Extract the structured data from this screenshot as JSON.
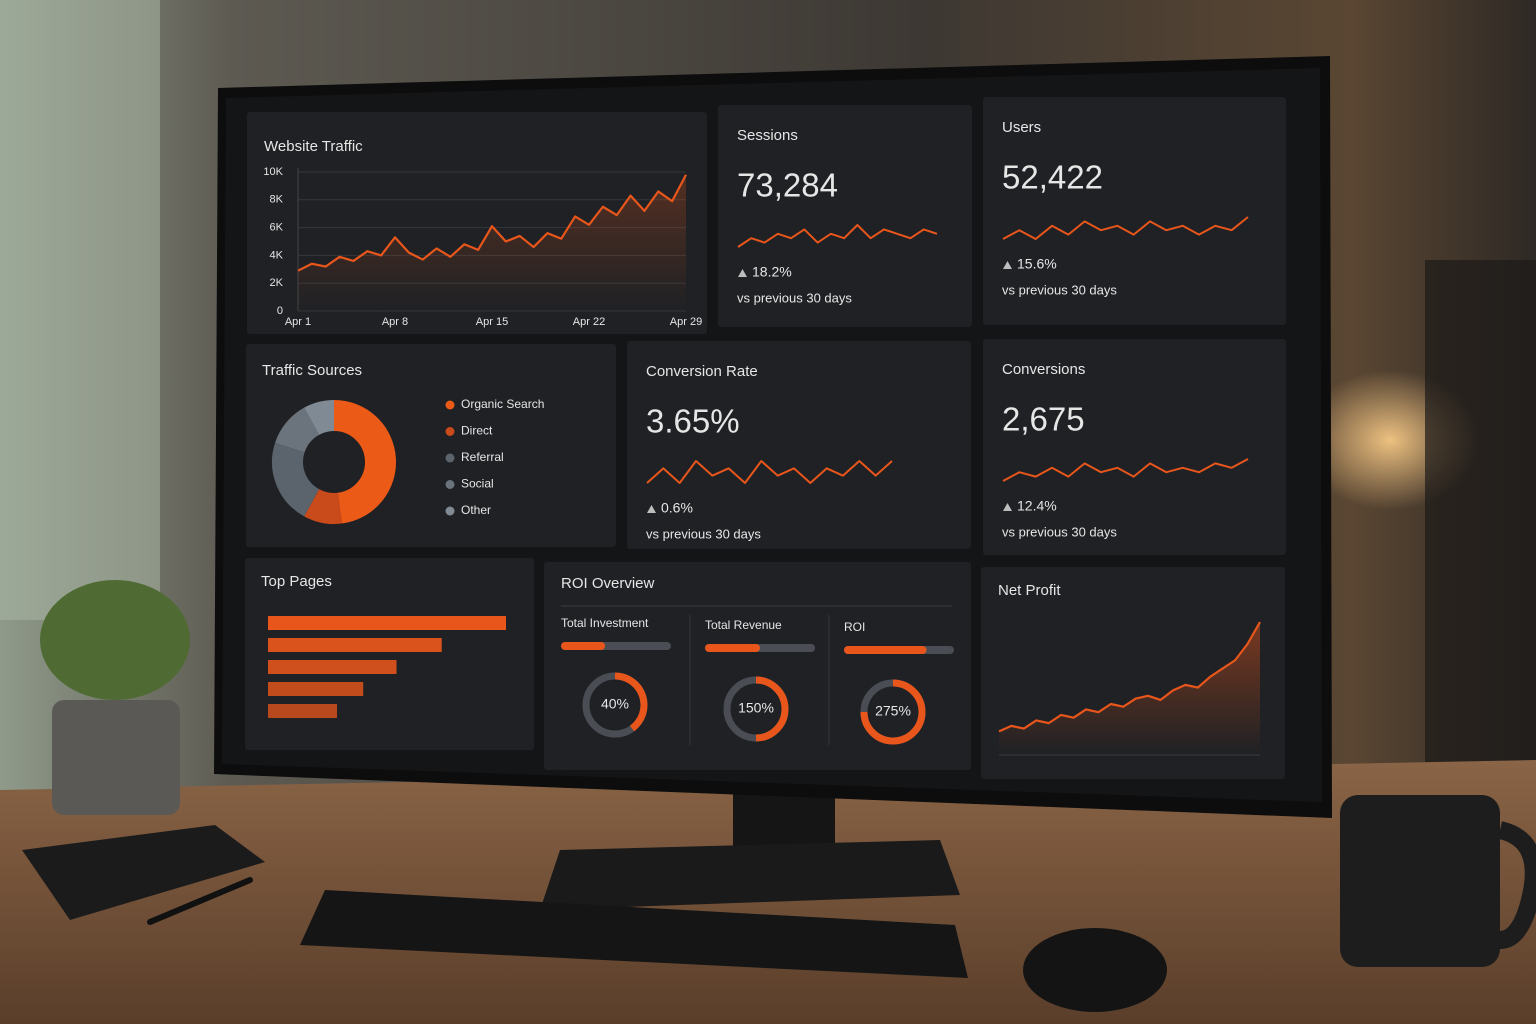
{
  "chart_data": [
    {
      "type": "line",
      "title": "Website Traffic",
      "categories": [
        "Apr 1",
        null,
        null,
        null,
        null,
        null,
        null,
        "Apr 8",
        null,
        null,
        null,
        null,
        null,
        null,
        "Apr 15",
        null,
        null,
        null,
        null,
        null,
        null,
        "Apr 22",
        null,
        null,
        null,
        null,
        null,
        null,
        "Apr 29"
      ],
      "values": [
        2900,
        3400,
        3200,
        3900,
        3600,
        4300,
        4000,
        5300,
        4200,
        3700,
        4500,
        3900,
        4800,
        4400,
        6100,
        5000,
        5400,
        4600,
        5600,
        5200,
        6800,
        6200,
        7500,
        6900,
        8300,
        7200,
        8600,
        7900,
        9800
      ],
      "color": "#e8561c",
      "ylim": [
        0,
        10000
      ],
      "yticks": [
        0,
        {
          "value": 2000,
          "label": "2K"
        },
        {
          "value": 4000,
          "label": "4K"
        },
        {
          "value": 6000,
          "label": "6K"
        },
        {
          "value": 8000,
          "label": "8K"
        },
        {
          "value": 10000,
          "label": "10K"
        }
      ],
      "grid": true
    },
    {
      "type": "pie",
      "title": "Traffic Sources",
      "categories": [
        "Organic Search",
        "Direct",
        "Referral",
        "Social",
        "Other"
      ],
      "values": [
        48,
        10,
        22,
        12,
        8
      ],
      "colors": [
        "#ec5a17",
        "#c94a1a",
        "#5b636c",
        "#6b747d",
        "#7f8a94"
      ],
      "donut": true
    },
    {
      "type": "bar",
      "title": "Top Pages",
      "values": [
        100,
        73,
        54,
        40,
        29
      ],
      "color": "#e8561c",
      "orientation": "horizontal"
    },
    {
      "type": "area",
      "title": "Net Profit",
      "values": [
        10,
        14,
        12,
        18,
        16,
        22,
        20,
        26,
        24,
        30,
        28,
        34,
        36,
        33,
        40,
        44,
        42,
        50,
        56,
        62,
        74,
        90
      ],
      "color": "#e8561c"
    }
  ],
  "cards": [
    {
      "title": "Sessions",
      "value": "73,284",
      "change": "18.2%",
      "note": "vs previous 30 days",
      "trend": [
        3,
        5,
        4,
        6,
        5,
        7,
        4,
        6,
        5,
        8,
        5,
        7,
        6,
        5,
        7,
        6
      ]
    },
    {
      "title": "Users",
      "value": "52,422",
      "change": "15.6%",
      "note": "vs previous 30 days",
      "trend": [
        3,
        5,
        3,
        6,
        4,
        7,
        5,
        6,
        4,
        7,
        5,
        6,
        4,
        6,
        5,
        8
      ]
    },
    {
      "title": "Conversion Rate",
      "value": "3.65%",
      "change": "0.6%",
      "note": "vs previous 30 days",
      "trend": [
        4,
        6,
        4,
        7,
        5,
        6,
        4,
        7,
        5,
        6,
        4,
        6,
        5,
        7,
        5,
        7
      ]
    },
    {
      "title": "Conversions",
      "value": "2,675",
      "change": "12.4%",
      "note": "vs previous 30 days",
      "trend": [
        3,
        5,
        4,
        6,
        4,
        7,
        5,
        6,
        4,
        7,
        5,
        6,
        5,
        7,
        6,
        8
      ]
    }
  ],
  "roi": {
    "title": "ROI Overview",
    "labels": [
      "Total Investment",
      "Total Revenue",
      "ROI"
    ],
    "values": [
      40,
      150,
      275
    ],
    "value_labels": [
      "40%",
      "150%",
      "275%"
    ]
  }
}
